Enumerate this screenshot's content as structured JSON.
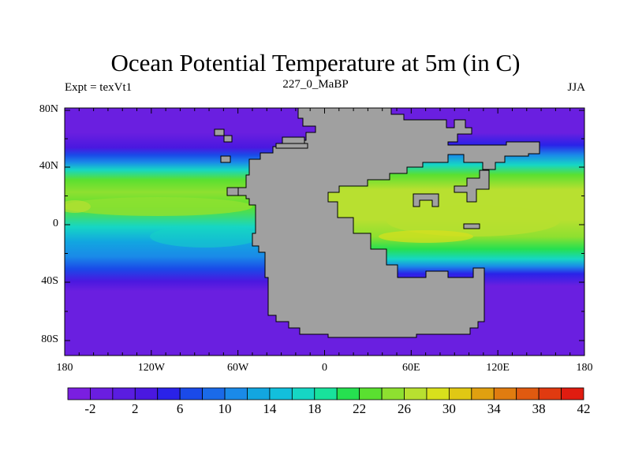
{
  "title": "Ocean Potential Temperature at 5m (in C)",
  "subtitle_left": "Expt = texVt1",
  "subtitle_center": "227_0_MaBP",
  "subtitle_right": "JJA",
  "lat_labels": [
    "80N",
    "40N",
    "0",
    "40S",
    "80S"
  ],
  "lon_labels": [
    "180",
    "120W",
    "60W",
    "0",
    "60E",
    "120E",
    "180"
  ],
  "colorbar": {
    "labels": [
      "-2",
      "2",
      "6",
      "10",
      "14",
      "18",
      "22",
      "26",
      "30",
      "34",
      "38",
      "42"
    ],
    "colors": [
      "#7a1fe0",
      "#6a1ee0",
      "#5a1de0",
      "#4a18e0",
      "#2a22e8",
      "#1a4ae8",
      "#1a6ae8",
      "#1a8ae8",
      "#12a6e0",
      "#12bfdc",
      "#16d6c4",
      "#18e29c",
      "#26e050",
      "#5ae030",
      "#8ee030",
      "#b8e030",
      "#d8e01c",
      "#e0c814",
      "#e0a010",
      "#e07c10",
      "#e05a10",
      "#e03a10",
      "#e01c10"
    ]
  },
  "colors": {
    "land": "#a0a0a0",
    "cold": "#6a1fe0"
  }
}
